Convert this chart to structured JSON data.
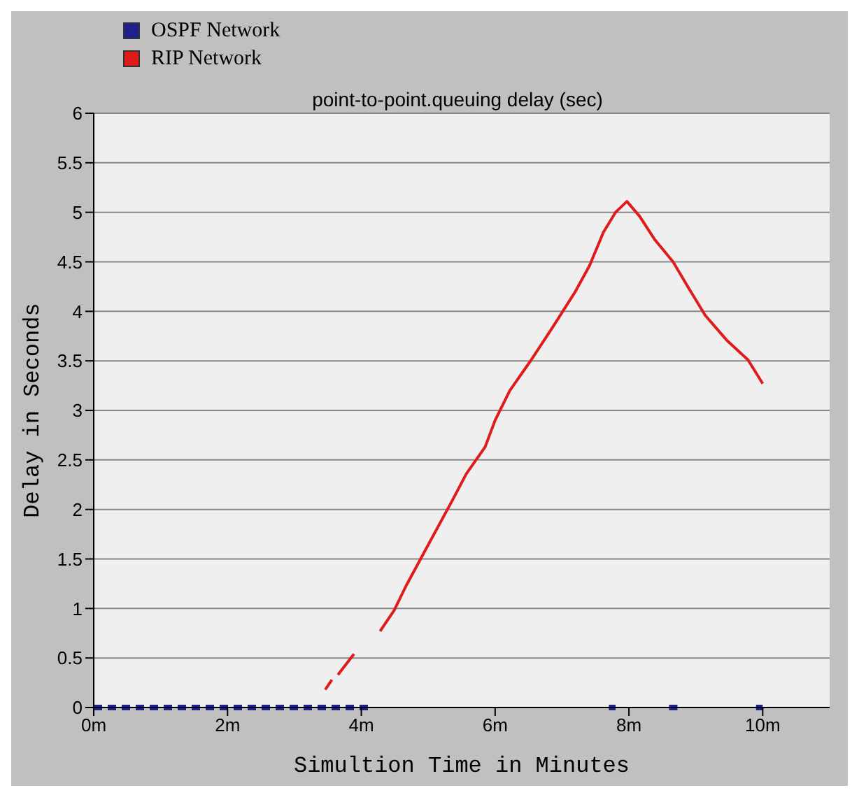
{
  "chart_data": {
    "type": "line",
    "title": "point-to-point.queuing delay (sec)",
    "xlabel": "Simultion Time in Minutes",
    "ylabel": "Delay in Seconds",
    "xlim": [
      0,
      11
    ],
    "xticks": [
      {
        "value": 0,
        "label": "0m"
      },
      {
        "value": 2,
        "label": "2m"
      },
      {
        "value": 4,
        "label": "4m"
      },
      {
        "value": 6,
        "label": "6m"
      },
      {
        "value": 8,
        "label": "8m"
      },
      {
        "value": 10,
        "label": "10m"
      }
    ],
    "ylim": [
      0,
      6
    ],
    "yticks": [
      0,
      0.5,
      1,
      1.5,
      2,
      2.5,
      3,
      3.5,
      4,
      4.5,
      5,
      5.5,
      6
    ],
    "grid": "y",
    "legend": "top left",
    "marker": "none",
    "series": [
      {
        "name": "OSPF Network",
        "color": "#1f1f8f",
        "line_style": "dashed",
        "x": [
          0,
          2,
          4.1,
          4.2,
          7.7,
          7.8,
          7.9,
          8.6,
          8.8,
          8.9,
          9.9,
          10
        ],
        "values": [
          0,
          0,
          0,
          null,
          0,
          0,
          null,
          0,
          0,
          null,
          0,
          0
        ]
      },
      {
        "name": "RIP Network",
        "color": "#e01b1b",
        "line_style": "solid",
        "x": [
          3.46,
          3.56,
          3.6,
          3.65,
          3.89,
          4.0,
          4.28,
          4.49,
          4.67,
          5.03,
          5.36,
          5.57,
          5.85,
          6.0,
          6.22,
          6.54,
          6.87,
          7.19,
          7.41,
          7.62,
          7.8,
          7.97,
          8.16,
          8.38,
          8.66,
          8.88,
          9.14,
          9.46,
          9.78,
          10.0
        ],
        "values": [
          0.18,
          0.28,
          null,
          0.33,
          0.54,
          null,
          0.77,
          0.98,
          1.23,
          1.68,
          2.09,
          2.36,
          2.63,
          2.9,
          3.2,
          3.51,
          3.85,
          4.19,
          4.46,
          4.8,
          5.0,
          5.11,
          4.96,
          4.73,
          4.5,
          4.25,
          3.96,
          3.71,
          3.51,
          3.27
        ]
      }
    ]
  }
}
